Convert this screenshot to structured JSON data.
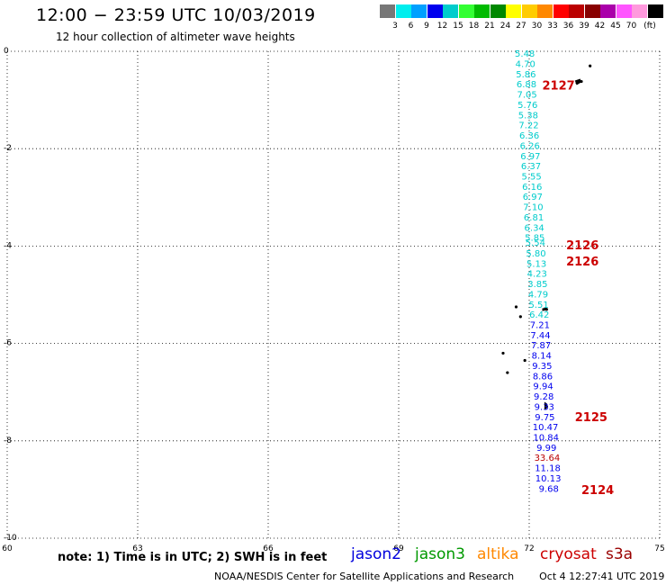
{
  "title": "12:00 − 23:59 UTC 10/03/2019",
  "subtitle": "12 hour collection of altimeter wave heights",
  "colorbar": {
    "colors": [
      "#777777",
      "#00eeee",
      "#00a0ff",
      "#0000ee",
      "#00cccc",
      "#33ff33",
      "#00bb00",
      "#008800",
      "#ffff00",
      "#ffcc00",
      "#ff8800",
      "#ff0000",
      "#bb0000",
      "#880000",
      "#aa00aa",
      "#ff55ff",
      "#ff99dd",
      "#000000"
    ],
    "labels": [
      "3",
      "6",
      "9",
      "12",
      "15",
      "18",
      "21",
      "24",
      "27",
      "30",
      "33",
      "36",
      "39",
      "42",
      "45",
      "70",
      "(ft)"
    ]
  },
  "axes": {
    "lon_ticks": [
      "60",
      "63",
      "66",
      "69",
      "72",
      "75"
    ],
    "lat_ticks": [
      "0",
      "-2",
      "-4",
      "-6",
      "-8",
      "-10"
    ],
    "lon_range": [
      60,
      75
    ],
    "lat_range": [
      -10,
      0
    ]
  },
  "observations": [
    {
      "lat": -0.04,
      "v": "5.48",
      "c": "#00cccc"
    },
    {
      "lat": -0.25,
      "v": "4.70",
      "c": "#00cccc"
    },
    {
      "lat": -0.46,
      "v": "5.86",
      "c": "#00cccc"
    },
    {
      "lat": -0.67,
      "v": "6.88",
      "c": "#00cccc"
    },
    {
      "lat": -0.88,
      "v": "7.05",
      "c": "#00cccc"
    },
    {
      "lat": -1.09,
      "v": "5.76",
      "c": "#00cccc"
    },
    {
      "lat": -1.3,
      "v": "5.38",
      "c": "#00cccc"
    },
    {
      "lat": -1.51,
      "v": "7.22",
      "c": "#00cccc"
    },
    {
      "lat": -1.72,
      "v": "6.36",
      "c": "#00cccc"
    },
    {
      "lat": -1.93,
      "v": "6.26",
      "c": "#00cccc"
    },
    {
      "lat": -2.14,
      "v": "6.97",
      "c": "#00cccc"
    },
    {
      "lat": -2.35,
      "v": "6.37",
      "c": "#00cccc"
    },
    {
      "lat": -2.56,
      "v": "5.55",
      "c": "#00cccc"
    },
    {
      "lat": -2.77,
      "v": "6.16",
      "c": "#00cccc"
    },
    {
      "lat": -2.98,
      "v": "6.97",
      "c": "#00cccc"
    },
    {
      "lat": -3.19,
      "v": "7.10",
      "c": "#00cccc"
    },
    {
      "lat": -3.4,
      "v": "6.81",
      "c": "#00cccc"
    },
    {
      "lat": -3.61,
      "v": "6.34",
      "c": "#00cccc"
    },
    {
      "lat": -3.82,
      "v": "5.85",
      "c": "#00cccc"
    },
    {
      "lat": -3.92,
      "v": "5.54",
      "c": "#00cccc"
    },
    {
      "lat": -4.14,
      "v": "5.80",
      "c": "#00cccc"
    },
    {
      "lat": -4.35,
      "v": "5.13",
      "c": "#00cccc"
    },
    {
      "lat": -4.56,
      "v": "4.23",
      "c": "#00cccc"
    },
    {
      "lat": -4.77,
      "v": "3.85",
      "c": "#00cccc"
    },
    {
      "lat": -4.98,
      "v": "4.79",
      "c": "#00cccc"
    },
    {
      "lat": -5.19,
      "v": "5.51",
      "c": "#00cccc"
    },
    {
      "lat": -5.4,
      "v": "6.42",
      "c": "#00cccc"
    },
    {
      "lat": -5.61,
      "v": "7.21",
      "c": "#0000ee"
    },
    {
      "lat": -5.82,
      "v": "7.44",
      "c": "#0000ee"
    },
    {
      "lat": -6.03,
      "v": "7.87",
      "c": "#0000ee"
    },
    {
      "lat": -6.24,
      "v": "8.14",
      "c": "#0000ee"
    },
    {
      "lat": -6.45,
      "v": "9.35",
      "c": "#0000ee"
    },
    {
      "lat": -6.66,
      "v": "8.86",
      "c": "#0000ee"
    },
    {
      "lat": -6.87,
      "v": "9.94",
      "c": "#0000ee"
    },
    {
      "lat": -7.08,
      "v": "9.28",
      "c": "#0000ee"
    },
    {
      "lat": -7.29,
      "v": "9.33",
      "c": "#0000ee"
    },
    {
      "lat": -7.5,
      "v": "9.75",
      "c": "#0000ee"
    },
    {
      "lat": -7.71,
      "v": "10.47",
      "c": "#0000ee"
    },
    {
      "lat": -7.92,
      "v": "10.84",
      "c": "#0000ee"
    },
    {
      "lat": -8.13,
      "v": "9.99",
      "c": "#0000ee"
    },
    {
      "lat": -8.34,
      "v": "33.64",
      "c": "#bb0000"
    },
    {
      "lat": -8.55,
      "v": "11.18",
      "c": "#0000ee"
    },
    {
      "lat": -8.76,
      "v": "10.13",
      "c": "#0000ee"
    },
    {
      "lat": -8.97,
      "v": "9.68",
      "c": "#0000ee"
    }
  ],
  "track_labels": [
    {
      "text": "2127",
      "lon": 72.3,
      "lat": -0.69
    },
    {
      "text": "2126",
      "lon": 72.85,
      "lat": -3.97
    },
    {
      "text": "2126",
      "lon": 72.85,
      "lat": -4.31
    },
    {
      "text": "2125",
      "lon": 73.05,
      "lat": -7.5
    },
    {
      "text": "2124",
      "lon": 73.2,
      "lat": -9.0
    }
  ],
  "note": "note: 1) Time is in UTC; 2) SWH is in feet",
  "satellites": [
    {
      "name": "jason2",
      "color": "#0000dd"
    },
    {
      "name": "jason3",
      "color": "#009900"
    },
    {
      "name": "altika",
      "color": "#ff8800"
    },
    {
      "name": "cryosat",
      "color": "#cc0000"
    },
    {
      "name": "s3a",
      "color": "#990000"
    }
  ],
  "footer": {
    "center": "NOAA/NESDIS Center for Satellite Applications and Research",
    "timestamp": "Oct  4 12:27:41 UTC 2019"
  }
}
